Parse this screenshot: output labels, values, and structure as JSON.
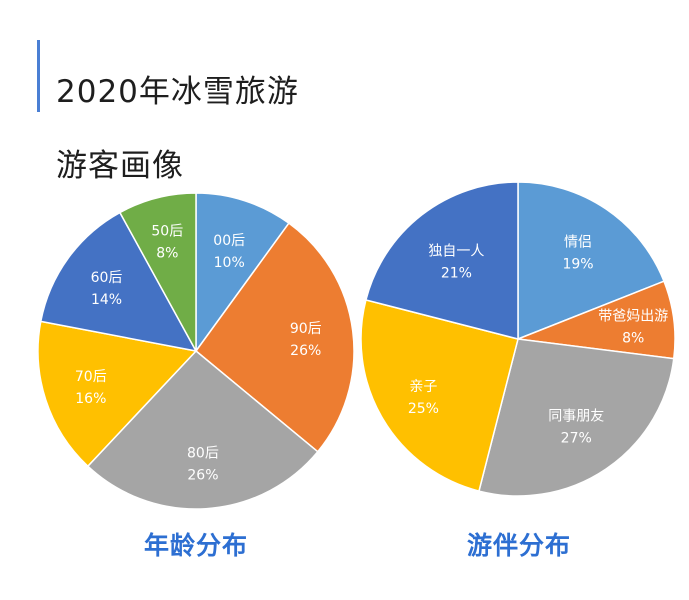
{
  "title": {
    "line1": "2020年冰雪旅游",
    "line2": "游客画像"
  },
  "colors": {
    "accent": "#4a7fd4",
    "caption": "#2d6fd2"
  },
  "chart_data": [
    {
      "type": "pie",
      "title": "年龄分布",
      "slices": [
        {
          "label": "00后",
          "value": 10,
          "value_label": "10%",
          "color": "#5b9bd5"
        },
        {
          "label": "90后",
          "value": 26,
          "value_label": "26%",
          "color": "#ed7d31"
        },
        {
          "label": "80后",
          "value": 26,
          "value_label": "26%",
          "color": "#a5a5a5"
        },
        {
          "label": "70后",
          "value": 16,
          "value_label": "16%",
          "color": "#ffc000"
        },
        {
          "label": "60后",
          "value": 14,
          "value_label": "14%",
          "color": "#4472c4"
        },
        {
          "label": "50后",
          "value": 8,
          "value_label": "8%",
          "color": "#70ad47"
        }
      ]
    },
    {
      "type": "pie",
      "title": "游伴分布",
      "slices": [
        {
          "label": "情侣",
          "value": 19,
          "value_label": "19%",
          "color": "#5b9bd5"
        },
        {
          "label": "带爸妈出游",
          "value": 8,
          "value_label": "8%",
          "color": "#ed7d31"
        },
        {
          "label": "同事朋友",
          "value": 27,
          "value_label": "27%",
          "color": "#a5a5a5"
        },
        {
          "label": "亲子",
          "value": 25,
          "value_label": "25%",
          "color": "#ffc000"
        },
        {
          "label": "独自一人",
          "value": 21,
          "value_label": "21%",
          "color": "#4472c4"
        }
      ]
    }
  ]
}
